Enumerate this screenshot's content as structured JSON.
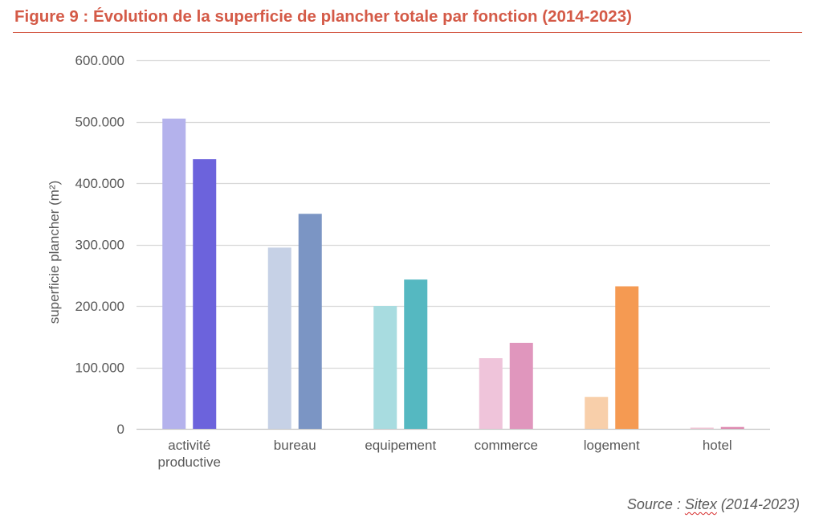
{
  "figure": {
    "title": "Figure 9 : Évolution de la superficie de plancher totale par fonction (2014-2023)",
    "source_prefix": "Source : ",
    "source_name": "Sitex",
    "source_suffix": " (2014-2023)"
  },
  "chart_data": {
    "type": "bar",
    "title": "Figure 9 : Évolution de la superficie de plancher totale par fonction (2014-2023)",
    "xlabel": "",
    "ylabel": "superficie plancher (m²)",
    "ylim": [
      0,
      600000
    ],
    "yticks": [
      0,
      100000,
      200000,
      300000,
      400000,
      500000,
      600000
    ],
    "ytick_labels": [
      "0",
      "100.000",
      "200.000",
      "300.000",
      "400.000",
      "500.000",
      "600.000"
    ],
    "grid": true,
    "legend": "none",
    "categories": [
      [
        "activité",
        "productive"
      ],
      [
        "bureau"
      ],
      [
        "equipement"
      ],
      [
        "commerce"
      ],
      [
        "logement"
      ],
      [
        "hotel"
      ]
    ],
    "series": [
      {
        "values": [
          505000,
          295000,
          200000,
          115000,
          52000,
          2000
        ],
        "colors": [
          "#b4b2ec",
          "#c6d1e6",
          "#a8dce0",
          "#efc4da",
          "#f8cfaa",
          "#f0c6d6"
        ]
      },
      {
        "values": [
          439000,
          350000,
          243000,
          140000,
          232000,
          3000
        ],
        "colors": [
          "#6c63dc",
          "#7b95c4",
          "#55b8c1",
          "#e096bd",
          "#f59a52",
          "#de8ab0"
        ]
      }
    ]
  }
}
